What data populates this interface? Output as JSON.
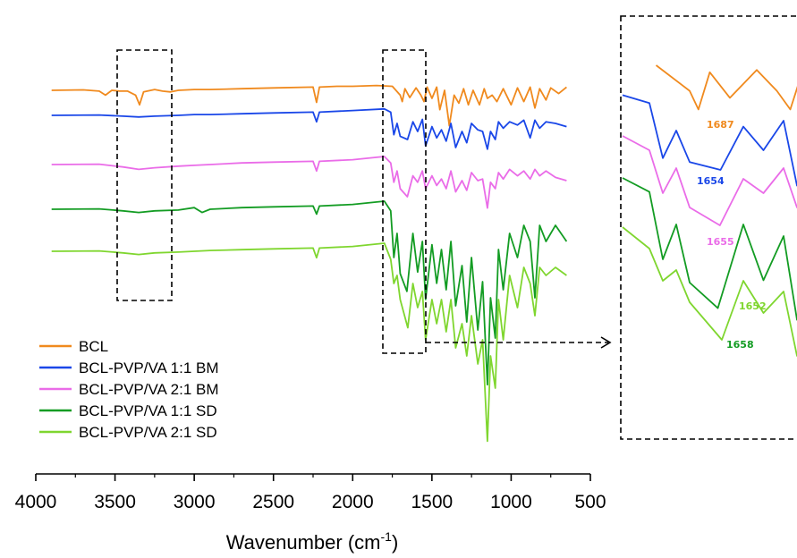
{
  "chart_data": {
    "type": "line",
    "title": "",
    "xlabel_main": "Wavenumber (cm",
    "xlabel_sup": "-1",
    "xlabel_close": ")",
    "ylabel": "",
    "xlim": [
      4000,
      500
    ],
    "x_ticks": [
      "4000",
      "3500",
      "3000",
      "2500",
      "2000",
      "1500",
      "1000",
      "500"
    ],
    "legend_position": "bottom-left",
    "series": [
      {
        "name": "BCL",
        "color": "#f08a1e",
        "x": [
          3900,
          3700,
          3600,
          3560,
          3520,
          3470,
          3420,
          3370,
          3345,
          3320,
          3250,
          3200,
          3150,
          3100,
          3000,
          2900,
          2700,
          2500,
          2250,
          2228,
          2210,
          2100,
          2000,
          1850,
          1750,
          1700,
          1687,
          1670,
          1640,
          1600,
          1570,
          1550,
          1530,
          1500,
          1470,
          1450,
          1420,
          1390,
          1360,
          1330,
          1300,
          1270,
          1240,
          1200,
          1170,
          1150,
          1120,
          1090,
          1050,
          1000,
          960,
          920,
          880,
          850,
          820,
          780,
          750,
          700,
          650
        ],
        "y": [
          0,
          0.5,
          -1,
          -6,
          0,
          -1,
          -1,
          -6,
          -18,
          -2,
          1,
          -1,
          -2,
          0,
          1,
          1,
          2,
          3,
          4,
          -15,
          4,
          5,
          5,
          6,
          5,
          -6,
          -14,
          2,
          -9,
          3,
          -6,
          -14,
          4,
          -10,
          4,
          -24,
          0,
          -44,
          -6,
          -16,
          2,
          -18,
          0,
          -18,
          2,
          -10,
          -6,
          -14,
          2,
          -18,
          3,
          -14,
          4,
          -22,
          2,
          -12,
          3,
          -4,
          4
        ]
      },
      {
        "name": "BCL-PVP/VA 1:1 BM",
        "color": "#1a47e8",
        "x": [
          3900,
          3600,
          3450,
          3350,
          3250,
          3100,
          3000,
          2900,
          2700,
          2500,
          2250,
          2228,
          2210,
          2000,
          1800,
          1760,
          1740,
          1720,
          1700,
          1654,
          1620,
          1590,
          1560,
          1540,
          1500,
          1470,
          1440,
          1410,
          1380,
          1350,
          1310,
          1280,
          1250,
          1210,
          1180,
          1150,
          1130,
          1100,
          1080,
          1050,
          1010,
          960,
          920,
          880,
          850,
          820,
          780,
          720,
          650
        ],
        "y": [
          0,
          0.5,
          -1,
          -2,
          -1,
          0,
          1,
          1,
          2,
          3,
          4,
          -8,
          4,
          6,
          8,
          4,
          -24,
          -10,
          -26,
          -30,
          -8,
          -20,
          -5,
          -38,
          -14,
          -28,
          -18,
          -32,
          -10,
          -40,
          -20,
          -34,
          -10,
          -18,
          -20,
          -42,
          -20,
          -30,
          -8,
          -16,
          -8,
          -12,
          -6,
          -28,
          -6,
          -16,
          -8,
          -10,
          -14
        ]
      },
      {
        "name": "BCL-PVP/VA 2:1 BM",
        "color": "#ea6ce8",
        "x": [
          3900,
          3600,
          3450,
          3350,
          3250,
          3100,
          3000,
          2900,
          2700,
          2500,
          2250,
          2228,
          2210,
          2000,
          1800,
          1760,
          1740,
          1720,
          1700,
          1655,
          1620,
          1590,
          1560,
          1540,
          1500,
          1470,
          1440,
          1410,
          1380,
          1350,
          1310,
          1280,
          1250,
          1210,
          1180,
          1150,
          1130,
          1100,
          1080,
          1050,
          1010,
          960,
          920,
          880,
          850,
          820,
          780,
          720,
          650
        ],
        "y": [
          0,
          0.5,
          -3,
          -6,
          -4,
          -2,
          -1,
          0,
          2,
          3,
          4,
          -8,
          4,
          6,
          10,
          2,
          -22,
          -8,
          -30,
          -40,
          -14,
          -22,
          -8,
          -30,
          -14,
          -26,
          -18,
          -30,
          -8,
          -34,
          -20,
          -32,
          -10,
          -20,
          -18,
          -54,
          -22,
          -30,
          -10,
          -18,
          -6,
          -14,
          -8,
          -18,
          -6,
          -14,
          -8,
          -16,
          -20
        ]
      },
      {
        "name": "BCL-PVP/VA 1:1 SD",
        "color": "#139c23",
        "x": [
          3900,
          3600,
          3450,
          3350,
          3250,
          3100,
          3000,
          2950,
          2900,
          2700,
          2500,
          2250,
          2228,
          2210,
          2000,
          1800,
          1760,
          1740,
          1720,
          1700,
          1658,
          1620,
          1590,
          1560,
          1540,
          1500,
          1470,
          1440,
          1410,
          1380,
          1350,
          1310,
          1280,
          1250,
          1210,
          1180,
          1150,
          1130,
          1100,
          1080,
          1050,
          1010,
          960,
          920,
          880,
          850,
          820,
          780,
          720,
          650
        ],
        "y": [
          0,
          0.5,
          -2,
          -4,
          -2,
          -1,
          2,
          -4,
          0,
          2,
          3,
          4,
          -6,
          4,
          6,
          10,
          -2,
          -60,
          -30,
          -80,
          -102,
          -30,
          -78,
          -40,
          -112,
          -44,
          -92,
          -50,
          -100,
          -40,
          -120,
          -70,
          -140,
          -60,
          -150,
          -90,
          -218,
          -110,
          -160,
          -50,
          -100,
          -30,
          -60,
          -20,
          -40,
          -110,
          -20,
          -40,
          -20,
          -40
        ]
      },
      {
        "name": "BCL-PVP/VA 2:1 SD",
        "color": "#7fd62f",
        "x": [
          3900,
          3600,
          3450,
          3350,
          3250,
          3100,
          3000,
          2900,
          2700,
          2500,
          2250,
          2228,
          2210,
          2000,
          1800,
          1760,
          1740,
          1720,
          1700,
          1652,
          1620,
          1590,
          1560,
          1540,
          1500,
          1470,
          1440,
          1410,
          1380,
          1350,
          1310,
          1280,
          1250,
          1210,
          1180,
          1150,
          1130,
          1100,
          1080,
          1050,
          1010,
          960,
          920,
          880,
          850,
          820,
          780,
          720,
          650
        ],
        "y": [
          0,
          0.5,
          -2,
          -4,
          -2,
          -1,
          0,
          1,
          2,
          3,
          4,
          -8,
          4,
          6,
          10,
          -10,
          -40,
          -30,
          -60,
          -95,
          -40,
          -70,
          -50,
          -110,
          -60,
          -90,
          -60,
          -100,
          -60,
          -120,
          -90,
          -130,
          -80,
          -140,
          -110,
          -236,
          -130,
          -170,
          -60,
          -110,
          -30,
          -70,
          -20,
          -40,
          -80,
          -20,
          -30,
          -20,
          -30
        ]
      }
    ],
    "inset": {
      "x_range": [
        1800,
        1540
      ],
      "annotations": [
        {
          "series": "BCL",
          "text": "1687",
          "color": "#f08a1e"
        },
        {
          "series": "BCL-PVP/VA 1:1 BM",
          "text": "1654",
          "color": "#1a47e8"
        },
        {
          "series": "BCL-PVP/VA 2:1 BM",
          "text": "1655",
          "color": "#ea6ce8"
        },
        {
          "series": "BCL-PVP/VA 2:1 SD",
          "text": "1652",
          "color": "#7fd62f"
        },
        {
          "series": "BCL-PVP/VA 1:1 SD",
          "text": "1658",
          "color": "#139c23"
        }
      ]
    }
  }
}
